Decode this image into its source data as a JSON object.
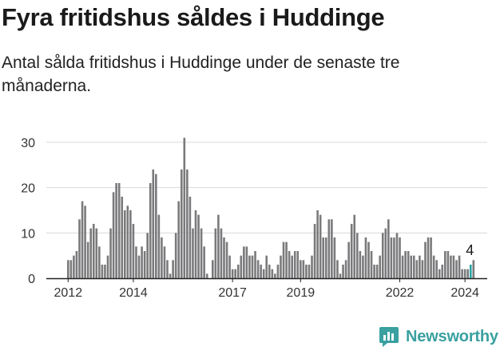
{
  "title": "Fyra fritidshus såldes i Huddinge",
  "subtitle": "Antal sålda fritidshus i Huddinge under de senaste tre månaderna.",
  "brand": {
    "name": "Newsworthy",
    "icon": "newsworthy-logo-icon"
  },
  "colors": {
    "bar": "#7a7a7c",
    "highlight": "#2aa3a6",
    "grid": "#d9d9d9",
    "axis": "#222222"
  },
  "chart_data": {
    "type": "bar",
    "title": "Fyra fritidshus såldes i Huddinge",
    "xlabel": "",
    "ylabel": "",
    "ylim": [
      0,
      33
    ],
    "yticks": [
      0,
      10,
      20,
      30
    ],
    "grid": true,
    "x_tick_labels": [
      {
        "label": "2012",
        "index": 0
      },
      {
        "label": "2014",
        "index": 23
      },
      {
        "label": "2017",
        "index": 58
      },
      {
        "label": "2019",
        "index": 82
      },
      {
        "label": "2022",
        "index": 117
      },
      {
        "label": "2024",
        "index": 140
      }
    ],
    "annotation": {
      "label": "4",
      "index": 142
    },
    "highlight_index": 142,
    "values": [
      4,
      4,
      5,
      6,
      13,
      17,
      16,
      8,
      11,
      12,
      11,
      7,
      3,
      3,
      5,
      11,
      19,
      21,
      21,
      18,
      15,
      16,
      15,
      12,
      7,
      5,
      7,
      6,
      10,
      21,
      24,
      23,
      14,
      9,
      7,
      4,
      1,
      4,
      10,
      17,
      24,
      31,
      24,
      18,
      11,
      15,
      14,
      11,
      7,
      1,
      0,
      4,
      11,
      14,
      11,
      9,
      8,
      5,
      2,
      2,
      3,
      5,
      7,
      7,
      5,
      5,
      6,
      4,
      3,
      2,
      5,
      3,
      2,
      1,
      3,
      5,
      8,
      8,
      6,
      5,
      6,
      6,
      4,
      4,
      3,
      3,
      5,
      12,
      15,
      14,
      9,
      9,
      13,
      13,
      9,
      4,
      1,
      3,
      4,
      8,
      12,
      14,
      10,
      6,
      5,
      9,
      8,
      6,
      3,
      3,
      5,
      10,
      11,
      13,
      9,
      9,
      10,
      9,
      5,
      6,
      6,
      5,
      5,
      4,
      5,
      4,
      8,
      9,
      9,
      5,
      4,
      2,
      3,
      6,
      6,
      5,
      5,
      4,
      5,
      2,
      2,
      2,
      3,
      4
    ]
  }
}
